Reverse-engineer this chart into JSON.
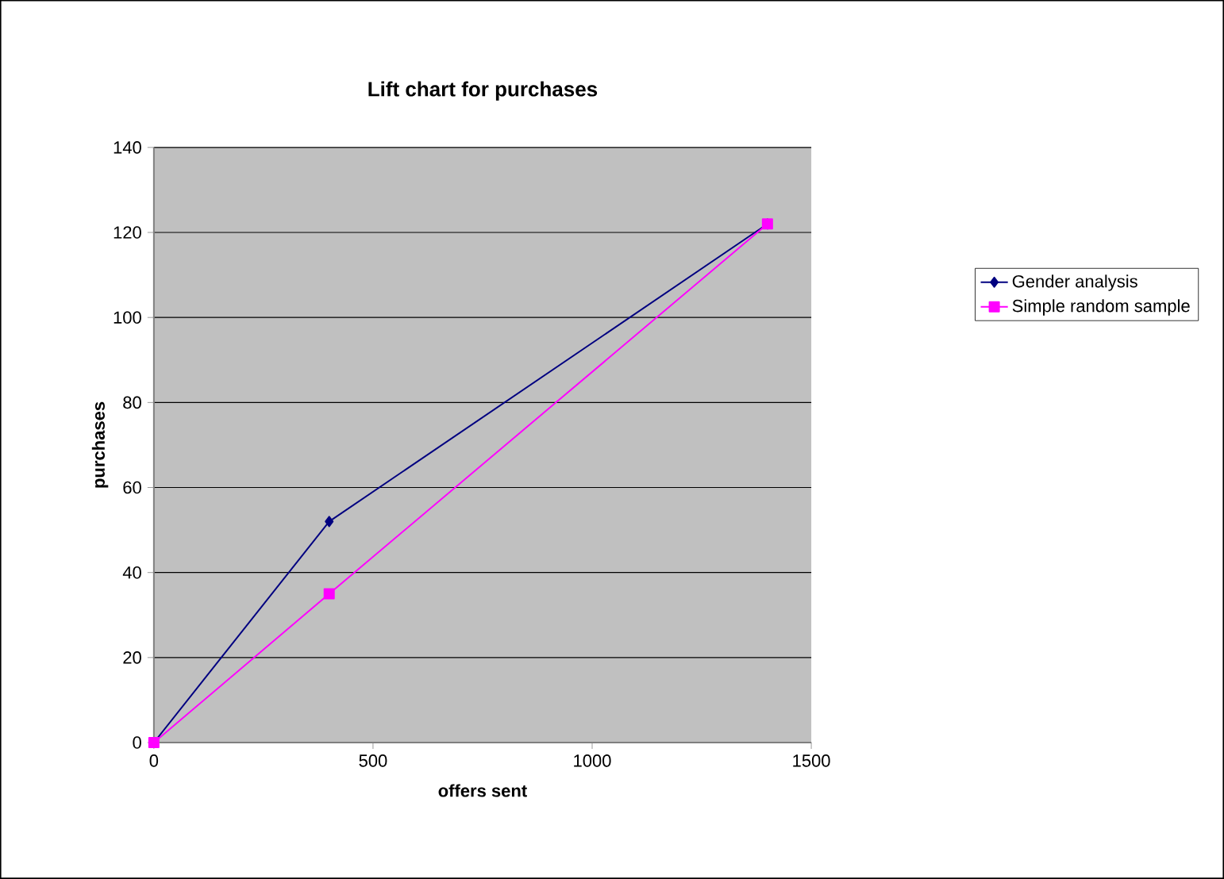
{
  "chart_data": {
    "type": "line",
    "title": "Lift chart for purchases",
    "xlabel": "offers sent",
    "ylabel": "purchases",
    "xlim": [
      0,
      1500
    ],
    "xticks": [
      0,
      500,
      1000,
      1500
    ],
    "ylim": [
      0,
      140
    ],
    "yticks": [
      0,
      20,
      40,
      60,
      80,
      100,
      120,
      140
    ],
    "grid": "y",
    "legend": "right",
    "series": [
      {
        "name": "Gender analysis",
        "color": "#000080",
        "marker": "diamond",
        "x": [
          0,
          400,
          1400
        ],
        "values": [
          0,
          52,
          122
        ]
      },
      {
        "name": "Simple random sample",
        "color": "#ff00ff",
        "marker": "square",
        "x": [
          0,
          400,
          1400
        ],
        "values": [
          0,
          35,
          122
        ]
      }
    ]
  }
}
